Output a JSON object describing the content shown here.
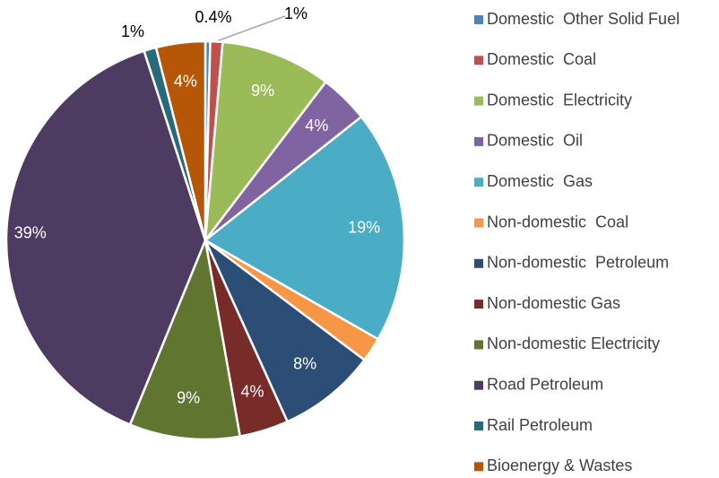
{
  "chart_data": {
    "type": "pie",
    "categories": [
      "Domestic  Other Solid Fuel",
      "Domestic  Coal",
      "Domestic  Electricity",
      "Domestic  Oil",
      "Domestic  Gas",
      "Non-domestic  Coal",
      "Non-domestic  Petroleum",
      "Non-domestic Gas",
      "Non-domestic Electricity",
      "Road Petroleum",
      "Rail Petroleum",
      "Bioenergy & Wastes"
    ],
    "values": [
      0.4,
      1,
      9,
      4,
      19,
      2,
      8,
      4,
      9,
      39,
      1,
      4
    ],
    "value_labels": [
      "0.4%",
      "1%",
      "9%",
      "4%",
      "19%",
      null,
      "8%",
      "4%",
      "9%",
      "39%",
      "1%",
      "4%"
    ],
    "colors": [
      "#4f81bd",
      "#c0504d",
      "#9bbb59",
      "#8064a2",
      "#4bacc6",
      "#f79646",
      "#2c4d75",
      "#772c2a",
      "#5f7530",
      "#4d3b62",
      "#276a7c",
      "#b65708"
    ],
    "legend": "right"
  }
}
